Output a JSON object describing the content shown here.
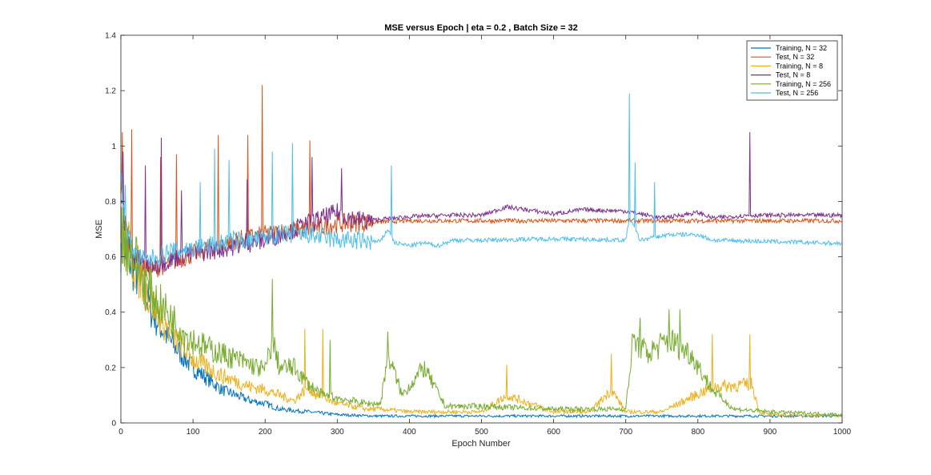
{
  "chart_data": {
    "type": "line",
    "title": "MSE versus Epoch | eta = 0.2 , Batch Size = 32",
    "xlabel": "Epoch Number",
    "ylabel": "MSE",
    "xlim": [
      0,
      1000
    ],
    "ylim": [
      0,
      1.4
    ],
    "xticks": [
      0,
      100,
      200,
      300,
      400,
      500,
      600,
      700,
      800,
      900,
      1000
    ],
    "yticks": [
      0,
      0.2,
      0.4,
      0.6,
      0.8,
      1,
      1.2,
      1.4
    ],
    "xtick_labels": [
      "0",
      "100",
      "200",
      "300",
      "400",
      "500",
      "600",
      "700",
      "800",
      "900",
      "1000"
    ],
    "ytick_labels": [
      "0",
      "0.2",
      "0.4",
      "0.6",
      "0.8",
      "1",
      "1.2",
      "1.4"
    ],
    "grid": false,
    "legend_position": "top-right",
    "series": [
      {
        "name": "Training, N = 32",
        "color": "#0072BD",
        "x": [
          0,
          10,
          20,
          30,
          40,
          50,
          60,
          70,
          80,
          90,
          100,
          110,
          120,
          130,
          140,
          150,
          160,
          170,
          180,
          200,
          220,
          240,
          260,
          280,
          300,
          350,
          400,
          500,
          600,
          700,
          800,
          900,
          1000
        ],
        "y": [
          0.66,
          0.61,
          0.55,
          0.49,
          0.42,
          0.37,
          0.33,
          0.29,
          0.26,
          0.23,
          0.2,
          0.18,
          0.16,
          0.14,
          0.12,
          0.11,
          0.1,
          0.09,
          0.08,
          0.07,
          0.05,
          0.045,
          0.04,
          0.035,
          0.03,
          0.025,
          0.025,
          0.025,
          0.025,
          0.025,
          0.025,
          0.025,
          0.025
        ]
      },
      {
        "name": "Test, N = 32",
        "color": "#D95319",
        "x": [
          0,
          5,
          10,
          15,
          20,
          30,
          40,
          50,
          60,
          70,
          80,
          90,
          100,
          120,
          140,
          160,
          180,
          200,
          220,
          250,
          280,
          300,
          350,
          400,
          500,
          600,
          700,
          800,
          900,
          1000
        ],
        "y": [
          0.85,
          0.74,
          0.66,
          0.62,
          0.59,
          0.56,
          0.55,
          0.56,
          0.57,
          0.58,
          0.59,
          0.6,
          0.61,
          0.63,
          0.64,
          0.66,
          0.67,
          0.68,
          0.69,
          0.7,
          0.71,
          0.72,
          0.725,
          0.73,
          0.73,
          0.73,
          0.73,
          0.73,
          0.73,
          0.73
        ]
      },
      {
        "name": "Training, N = 8",
        "color": "#EDB120",
        "x": [
          0,
          10,
          20,
          30,
          40,
          50,
          60,
          70,
          80,
          90,
          100,
          120,
          140,
          160,
          180,
          200,
          220,
          240,
          260,
          270,
          280,
          290,
          300,
          320,
          340,
          360,
          400,
          450,
          500,
          535,
          600,
          650,
          680,
          700,
          750,
          820,
          875,
          885,
          900,
          1000
        ],
        "y": [
          0.68,
          0.63,
          0.57,
          0.51,
          0.45,
          0.4,
          0.36,
          0.32,
          0.29,
          0.26,
          0.23,
          0.2,
          0.17,
          0.15,
          0.13,
          0.12,
          0.1,
          0.08,
          0.13,
          0.1,
          0.1,
          0.08,
          0.07,
          0.06,
          0.05,
          0.05,
          0.04,
          0.04,
          0.04,
          0.1,
          0.04,
          0.04,
          0.12,
          0.04,
          0.04,
          0.13,
          0.14,
          0.04,
          0.03,
          0.025
        ]
      },
      {
        "name": "Test, N = 8",
        "color": "#7E2F8E",
        "x": [
          0,
          5,
          10,
          15,
          20,
          30,
          40,
          50,
          60,
          70,
          80,
          90,
          100,
          120,
          140,
          160,
          180,
          200,
          220,
          240,
          260,
          280,
          300,
          320,
          340,
          360,
          400,
          450,
          500,
          535,
          600,
          640,
          700,
          750,
          800,
          820,
          870,
          900,
          1000
        ],
        "y": [
          0.8,
          0.72,
          0.66,
          0.62,
          0.6,
          0.58,
          0.57,
          0.57,
          0.58,
          0.59,
          0.6,
          0.61,
          0.61,
          0.62,
          0.63,
          0.64,
          0.65,
          0.66,
          0.68,
          0.7,
          0.72,
          0.74,
          0.76,
          0.74,
          0.73,
          0.735,
          0.745,
          0.75,
          0.75,
          0.78,
          0.755,
          0.77,
          0.765,
          0.74,
          0.76,
          0.74,
          0.75,
          0.75,
          0.75
        ]
      },
      {
        "name": "Training, N = 256",
        "color": "#77AC30",
        "x": [
          0,
          10,
          20,
          30,
          40,
          50,
          60,
          70,
          80,
          90,
          100,
          120,
          140,
          160,
          180,
          200,
          210,
          220,
          240,
          260,
          280,
          300,
          320,
          340,
          360,
          370,
          390,
          420,
          450,
          500,
          600,
          700,
          710,
          730,
          760,
          790,
          820,
          850,
          900,
          1000
        ],
        "y": [
          0.69,
          0.64,
          0.59,
          0.53,
          0.48,
          0.44,
          0.41,
          0.38,
          0.35,
          0.32,
          0.3,
          0.27,
          0.25,
          0.23,
          0.21,
          0.19,
          0.3,
          0.2,
          0.2,
          0.14,
          0.1,
          0.09,
          0.08,
          0.07,
          0.07,
          0.25,
          0.1,
          0.2,
          0.06,
          0.06,
          0.05,
          0.05,
          0.3,
          0.25,
          0.3,
          0.25,
          0.12,
          0.05,
          0.04,
          0.03
        ]
      },
      {
        "name": "Test, N = 256",
        "color": "#4DBEEE",
        "x": [
          0,
          5,
          10,
          15,
          20,
          30,
          40,
          50,
          60,
          70,
          80,
          90,
          100,
          120,
          140,
          160,
          180,
          200,
          220,
          240,
          260,
          280,
          300,
          320,
          340,
          360,
          370,
          380,
          400,
          420,
          440,
          460,
          500,
          600,
          700,
          705,
          720,
          760,
          800,
          820,
          900,
          1000
        ],
        "y": [
          0.9,
          0.75,
          0.68,
          0.64,
          0.61,
          0.59,
          0.59,
          0.6,
          0.61,
          0.62,
          0.62,
          0.63,
          0.63,
          0.64,
          0.65,
          0.66,
          0.66,
          0.67,
          0.68,
          0.68,
          0.68,
          0.67,
          0.66,
          0.66,
          0.655,
          0.655,
          0.7,
          0.65,
          0.64,
          0.65,
          0.64,
          0.66,
          0.66,
          0.665,
          0.66,
          0.74,
          0.66,
          0.68,
          0.68,
          0.66,
          0.655,
          0.648
        ]
      }
    ],
    "spikes": [
      {
        "series": 1,
        "points": [
          [
            2,
            1.05
          ],
          [
            15,
            1.06
          ],
          [
            55,
            0.96
          ],
          [
            77,
            0.97
          ],
          [
            135,
            1.04
          ],
          [
            176,
            1.04
          ],
          [
            196,
            1.22
          ],
          [
            262,
            1.02
          ]
        ]
      },
      {
        "series": 3,
        "points": [
          [
            3,
            0.98
          ],
          [
            34,
            0.93
          ],
          [
            56,
            1.03
          ],
          [
            84,
            0.84
          ],
          [
            175,
            0.88
          ],
          [
            265,
            0.96
          ],
          [
            306,
            0.92
          ],
          [
            872,
            1.05
          ]
        ]
      },
      {
        "series": 5,
        "points": [
          [
            6,
            0.86
          ],
          [
            110,
            0.87
          ],
          [
            130,
            0.99
          ],
          [
            150,
            0.95
          ],
          [
            210,
            0.98
          ],
          [
            238,
            1.01
          ],
          [
            375,
            0.93
          ],
          [
            705,
            1.19
          ],
          [
            713,
            0.94
          ],
          [
            740,
            0.87
          ]
        ]
      },
      {
        "series": 2,
        "points": [
          [
            255,
            0.34
          ],
          [
            280,
            0.34
          ],
          [
            535,
            0.21
          ],
          [
            680,
            0.25
          ],
          [
            820,
            0.32
          ],
          [
            872,
            0.32
          ]
        ]
      },
      {
        "series": 4,
        "points": [
          [
            210,
            0.52
          ],
          [
            290,
            0.3
          ],
          [
            370,
            0.33
          ],
          [
            720,
            0.38
          ],
          [
            760,
            0.41
          ],
          [
            775,
            0.41
          ]
        ]
      }
    ]
  }
}
